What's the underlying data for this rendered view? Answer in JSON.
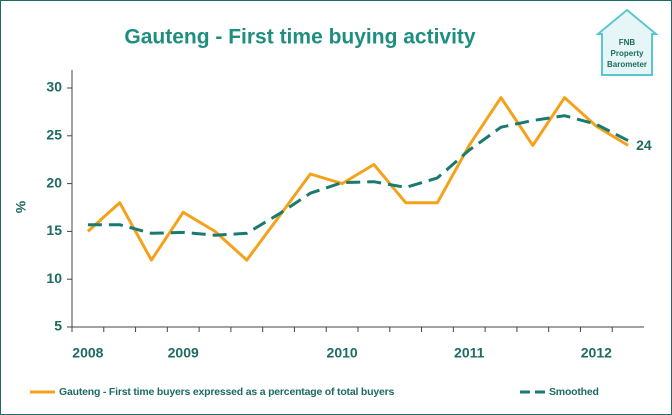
{
  "chart_data": {
    "type": "line",
    "title": "Gauteng - First time buying activity",
    "y_label": "%",
    "logo": [
      "FNB",
      "Property",
      "Barometer"
    ],
    "categories": [
      "2008",
      null,
      null,
      "2009",
      null,
      null,
      null,
      null,
      "2010",
      null,
      null,
      null,
      "2011",
      null,
      null,
      null,
      "2012",
      null
    ],
    "series": [
      {
        "name": "Gauteng - First time buyers expressed as a percentage of total buyers",
        "color": "#f5a21b",
        "dashed": false,
        "values": [
          15,
          18,
          12,
          17,
          15,
          12,
          16.5,
          21,
          20,
          22,
          18,
          18,
          24,
          29,
          24,
          29,
          26,
          24
        ],
        "value_labels": [
          null,
          null,
          null,
          null,
          null,
          null,
          null,
          null,
          null,
          null,
          null,
          null,
          null,
          null,
          null,
          null,
          null,
          "24"
        ]
      },
      {
        "name": "Smoothed",
        "color": "#1a7a70",
        "dashed": true,
        "values": [
          15.7,
          15.7,
          14.8,
          14.9,
          14.6,
          14.8,
          16.8,
          19,
          20.1,
          20.2,
          19.6,
          20.6,
          23.5,
          25.9,
          26.6,
          27.1,
          26.2,
          24.5
        ]
      }
    ],
    "ylim": [
      5,
      30
    ],
    "yticks": [
      5,
      10,
      15,
      20,
      25,
      30
    ],
    "grid": false
  }
}
